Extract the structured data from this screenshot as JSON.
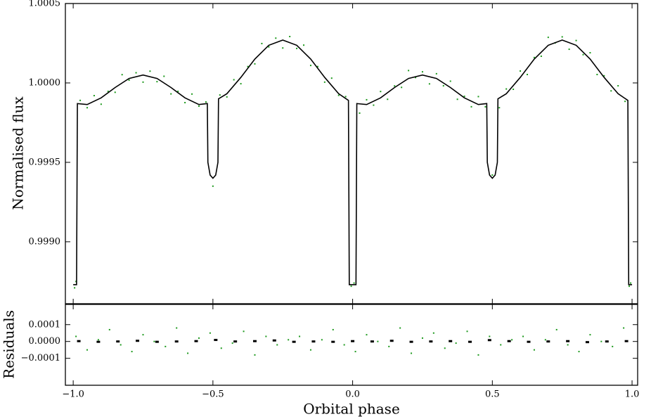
{
  "chart_data": [
    {
      "type": "scatter",
      "ylabel": "Normalised flux",
      "xlim": [
        -1.028,
        1.02
      ],
      "ylim": [
        0.99861,
        1.0005
      ],
      "xticks": [
        -1,
        -0.5,
        0,
        0.5,
        1
      ],
      "show_xtick_labels": false,
      "yticks": [
        {
          "value": 1.0005,
          "label": "1.0005"
        },
        {
          "value": 1.0,
          "label": "1.0000"
        },
        {
          "value": 0.9995,
          "label": "0.9995"
        },
        {
          "value": 0.999,
          "label": "0.9990"
        }
      ],
      "series": [
        {
          "type": "scatter",
          "color": "#1e9a1e",
          "x": [
            -0.995,
            -0.99,
            -0.975,
            -0.95,
            -0.925,
            -0.9,
            -0.875,
            -0.85,
            -0.825,
            -0.8,
            -0.775,
            -0.75,
            -0.725,
            -0.7,
            -0.675,
            -0.65,
            -0.625,
            -0.6,
            -0.575,
            -0.55,
            -0.525,
            -0.5,
            -0.475,
            -0.45,
            -0.425,
            -0.4,
            -0.375,
            -0.35,
            -0.325,
            -0.3,
            -0.275,
            -0.25,
            -0.225,
            -0.2,
            -0.175,
            -0.15,
            -0.125,
            -0.1,
            -0.075,
            -0.05,
            -0.025,
            -0.005,
            0.005,
            0.025,
            0.05,
            0.075,
            0.1,
            0.125,
            0.15,
            0.175,
            0.2,
            0.225,
            0.25,
            0.275,
            0.3,
            0.325,
            0.35,
            0.375,
            0.4,
            0.425,
            0.45,
            0.475,
            0.5,
            0.525,
            0.55,
            0.575,
            0.6,
            0.625,
            0.65,
            0.675,
            0.7,
            0.725,
            0.75,
            0.775,
            0.8,
            0.825,
            0.85,
            0.875,
            0.9,
            0.925,
            0.95,
            0.975,
            0.99,
            0.995
          ],
          "values": [
            0.99871,
            0.99875,
            0.99989,
            0.999844,
            0.99992,
            0.999866,
            0.999947,
            0.999941,
            1.000052,
            1.000018,
            1.000064,
            1.000005,
            1.000074,
            1.000008,
            1.000042,
            0.999931,
            0.999947,
            0.999876,
            0.99993,
            0.999854,
            0.99988,
            0.99935,
            0.999924,
            0.999912,
            1.00002,
            0.999995,
            1.000103,
            1.00012,
            1.000248,
            1.000227,
            1.000282,
            1.00022,
            1.000292,
            1.000217,
            1.000238,
            1.00011,
            1.000103,
            1.000005,
            1.00003,
            0.999922,
            0.999914,
            0.99872,
            0.99874,
            0.99981,
            0.999894,
            0.99986,
            0.999946,
            0.999897,
            0.999981,
            0.999972,
            1.000078,
            1.000034,
            1.00007,
            0.999994,
            1.000058,
            0.999982,
            1.000011,
            0.999897,
            0.999916,
            0.99985,
            0.999914,
            0.99985,
            0.99942,
            0.999844,
            0.999962,
            0.99996,
            1.000075,
            1.000053,
            1.00016,
            1.000168,
            1.000287,
            1.000252,
            1.00029,
            1.000212,
            1.000267,
            1.000178,
            1.00019,
            1.000053,
            1.000045,
            0.99995,
            0.999982,
            0.999884,
            0.99872,
            0.99874
          ]
        },
        {
          "type": "line",
          "color": "#000000",
          "x": [
            -1.0,
            -0.988,
            -0.985,
            -0.95,
            -0.9,
            -0.85,
            -0.8,
            -0.75,
            -0.7,
            -0.65,
            -0.6,
            -0.55,
            -0.52,
            -0.518,
            -0.51,
            -0.5,
            -0.49,
            -0.482,
            -0.48,
            -0.45,
            -0.4,
            -0.35,
            -0.3,
            -0.25,
            -0.2,
            -0.15,
            -0.1,
            -0.05,
            -0.015,
            -0.012,
            0.012,
            0.015,
            0.05,
            0.1,
            0.15,
            0.2,
            0.25,
            0.3,
            0.35,
            0.4,
            0.45,
            0.48,
            0.482,
            0.49,
            0.5,
            0.51,
            0.518,
            0.52,
            0.55,
            0.6,
            0.65,
            0.7,
            0.75,
            0.8,
            0.85,
            0.9,
            0.95,
            0.985,
            0.988,
            1.0
          ],
          "values": [
            0.99873,
            0.99873,
            0.99987,
            0.999864,
            0.999906,
            0.999971,
            1.000028,
            1.00005,
            1.000028,
            0.999971,
            0.999906,
            0.999864,
            0.99987,
            0.9995,
            0.99942,
            0.9994,
            0.99942,
            0.9995,
            0.9999,
            0.999932,
            1.000035,
            1.00015,
            1.000237,
            1.00027,
            1.000237,
            1.00015,
            1.000035,
            0.999932,
            0.99989,
            0.99873,
            0.99873,
            0.99987,
            0.999864,
            0.999906,
            0.999971,
            1.000028,
            1.00005,
            1.000028,
            0.999971,
            0.999906,
            0.999864,
            0.99987,
            0.9995,
            0.99942,
            0.9994,
            0.99942,
            0.9995,
            0.9999,
            0.999932,
            1.000035,
            1.00015,
            1.000237,
            1.00027,
            1.000237,
            1.00015,
            1.000035,
            0.999932,
            0.99989,
            0.99873,
            0.99873
          ]
        }
      ]
    },
    {
      "type": "scatter",
      "ylabel": "Residuals",
      "xlabel": "Orbital phase",
      "xlim": [
        -1.028,
        1.02
      ],
      "ylim": [
        -0.00026,
        0.00022
      ],
      "xticks": [
        {
          "value": -1,
          "label": "−1.0"
        },
        {
          "value": -0.5,
          "label": "−0.5"
        },
        {
          "value": 0,
          "label": "0.0"
        },
        {
          "value": 0.5,
          "label": "0.5"
        },
        {
          "value": 1,
          "label": "1.0"
        }
      ],
      "show_xtick_labels": true,
      "yticks": [
        {
          "value": 0.0001,
          "label": "0.0001"
        },
        {
          "value": 0,
          "label": "0.0000"
        },
        {
          "value": -0.0001,
          "label": "−0.0001"
        }
      ],
      "series": [
        {
          "type": "scatter",
          "color": "#1e9a1e",
          "x": [
            -0.99,
            -0.95,
            -0.91,
            -0.87,
            -0.83,
            -0.79,
            -0.75,
            -0.71,
            -0.67,
            -0.63,
            -0.59,
            -0.55,
            -0.51,
            -0.47,
            -0.43,
            -0.39,
            -0.35,
            -0.31,
            -0.27,
            -0.23,
            -0.19,
            -0.15,
            -0.11,
            -0.07,
            -0.03,
            0.01,
            0.05,
            0.09,
            0.13,
            0.17,
            0.21,
            0.25,
            0.29,
            0.33,
            0.37,
            0.41,
            0.45,
            0.49,
            0.53,
            0.57,
            0.61,
            0.65,
            0.69,
            0.73,
            0.77,
            0.81,
            0.85,
            0.89,
            0.93,
            0.97
          ],
          "values": [
            3e-05,
            -5e-05,
            1e-05,
            7e-05,
            -2e-05,
            -6e-05,
            4e-05,
            0.0,
            -3e-05,
            8e-05,
            -7e-05,
            2e-05,
            5e-05,
            -4e-05,
            -1e-05,
            6e-05,
            -8e-05,
            3e-05,
            -2e-05,
            1e-05,
            3e-05,
            -5e-05,
            1e-05,
            7e-05,
            -2e-05,
            -6e-05,
            4e-05,
            0.0,
            -3e-05,
            8e-05,
            -7e-05,
            2e-05,
            5e-05,
            -4e-05,
            -1e-05,
            6e-05,
            -8e-05,
            3e-05,
            -2e-05,
            1e-05,
            3e-05,
            -5e-05,
            1e-05,
            7e-05,
            -2e-05,
            -6e-05,
            4e-05,
            0.0,
            -3e-05,
            8e-05
          ]
        },
        {
          "type": "binned",
          "color": "#000000",
          "x": [
            -0.98,
            -0.91,
            -0.84,
            -0.77,
            -0.7,
            -0.63,
            -0.56,
            -0.49,
            -0.42,
            -0.35,
            -0.28,
            -0.21,
            -0.14,
            -0.07,
            0.0,
            0.07,
            0.14,
            0.21,
            0.28,
            0.35,
            0.42,
            0.49,
            0.56,
            0.63,
            0.7,
            0.77,
            0.84,
            0.91,
            0.98
          ],
          "values": [
            2e-06,
            -2e-06,
            0.0,
            4e-06,
            -2e-06,
            0.0,
            2e-06,
            9e-06,
            0.0,
            2e-06,
            6e-06,
            -2e-06,
            0.0,
            -2e-06,
            2e-06,
            0.0,
            4e-06,
            -2e-06,
            0.0,
            2e-06,
            -2e-06,
            8e-06,
            2e-06,
            -2e-06,
            0.0,
            2e-06,
            -4e-06,
            0.0,
            2e-06
          ]
        }
      ]
    }
  ]
}
